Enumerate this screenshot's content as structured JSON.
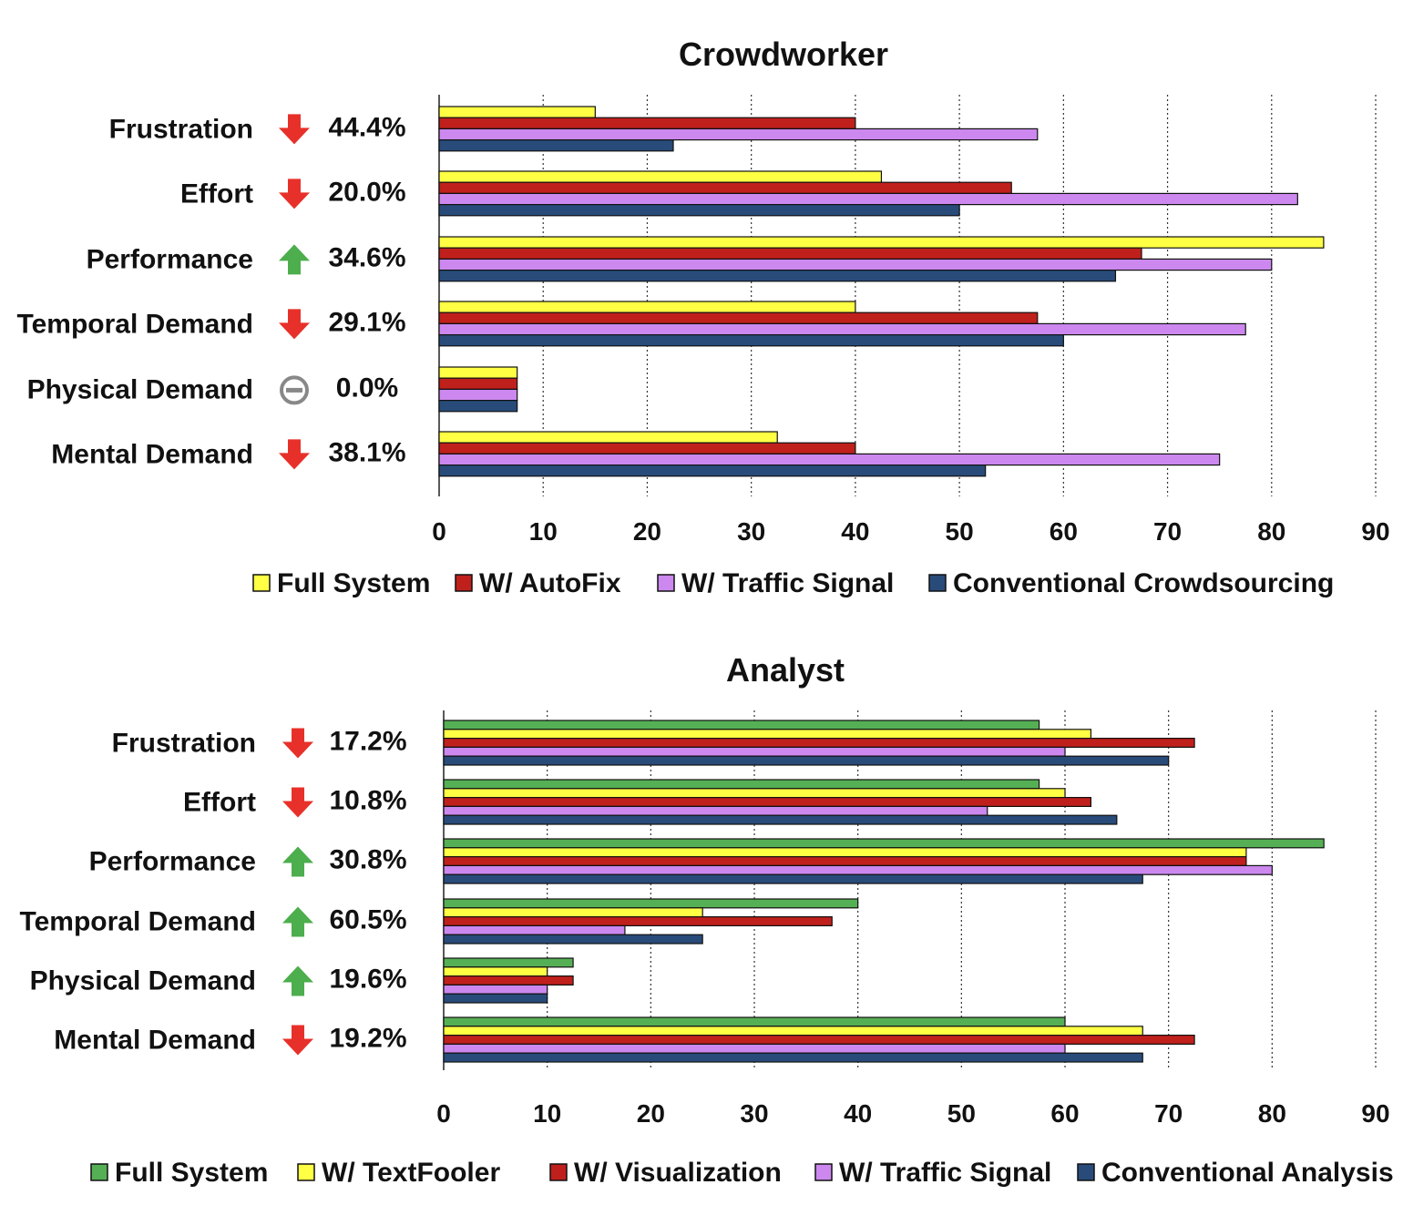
{
  "chart_data": [
    {
      "type": "bar",
      "orientation": "horizontal",
      "title": "Crowdworker",
      "xlim": [
        0,
        90
      ],
      "xticks": [
        "0",
        "10",
        "20",
        "30",
        "40",
        "50",
        "60",
        "70",
        "80",
        "90"
      ],
      "grid": true,
      "legend_position": "bottom",
      "categories": [
        "Frustration",
        "Effort",
        "Performance",
        "Temporal Demand",
        "Physical Demand",
        "Mental Demand"
      ],
      "changes": [
        {
          "direction": "down",
          "label": "44.4%"
        },
        {
          "direction": "down",
          "label": "20.0%"
        },
        {
          "direction": "up",
          "label": "34.6%"
        },
        {
          "direction": "down",
          "label": "29.1%"
        },
        {
          "direction": "none",
          "label": "0.0%"
        },
        {
          "direction": "down",
          "label": "38.1%"
        }
      ],
      "series": [
        {
          "name": "Full System",
          "color": "#ffff44",
          "values": [
            15,
            42.5,
            85,
            40,
            7.5,
            32.5
          ]
        },
        {
          "name": "W/ AutoFix",
          "color": "#c0201c",
          "values": [
            40,
            55,
            67.5,
            57.5,
            7.5,
            40
          ]
        },
        {
          "name": "W/ Traffic Signal",
          "color": "#cc88ee",
          "values": [
            57.5,
            82.5,
            80,
            77.5,
            7.5,
            75
          ]
        },
        {
          "name": "Conventional Crowdsourcing",
          "color": "#284b7a",
          "values": [
            22.5,
            50,
            65,
            60,
            7.5,
            52.5
          ]
        }
      ]
    },
    {
      "type": "bar",
      "orientation": "horizontal",
      "title": "Analyst",
      "xlim": [
        0,
        90
      ],
      "xticks": [
        "0",
        "10",
        "20",
        "30",
        "40",
        "50",
        "60",
        "70",
        "80",
        "90"
      ],
      "grid": true,
      "legend_position": "bottom",
      "categories": [
        "Frustration",
        "Effort",
        "Performance",
        "Temporal Demand",
        "Physical Demand",
        "Mental Demand"
      ],
      "changes": [
        {
          "direction": "down",
          "label": "17.2%"
        },
        {
          "direction": "down",
          "label": "10.8%"
        },
        {
          "direction": "up",
          "label": "30.8%"
        },
        {
          "direction": "up",
          "label": "60.5%"
        },
        {
          "direction": "up",
          "label": "19.6%"
        },
        {
          "direction": "down",
          "label": "19.2%"
        }
      ],
      "series": [
        {
          "name": "Full System",
          "color": "#55b055",
          "values": [
            57.5,
            57.5,
            85,
            40,
            12.5,
            60
          ]
        },
        {
          "name": "W/ TextFooler",
          "color": "#ffff44",
          "values": [
            62.5,
            60,
            77.5,
            25,
            10,
            67.5
          ]
        },
        {
          "name": "W/ Visualization",
          "color": "#c0201c",
          "values": [
            72.5,
            62.5,
            77.5,
            37.5,
            12.5,
            72.5
          ]
        },
        {
          "name": "W/ Traffic Signal",
          "color": "#cc88ee",
          "values": [
            60,
            52.5,
            80,
            17.5,
            10,
            60
          ]
        },
        {
          "name": "Conventional Analysis",
          "color": "#284b7a",
          "values": [
            70,
            65,
            67.5,
            25,
            10,
            67.5
          ]
        }
      ]
    }
  ],
  "arrow_colors": {
    "down": "#e8302a",
    "up": "#4cae4c",
    "none": "#888888"
  }
}
